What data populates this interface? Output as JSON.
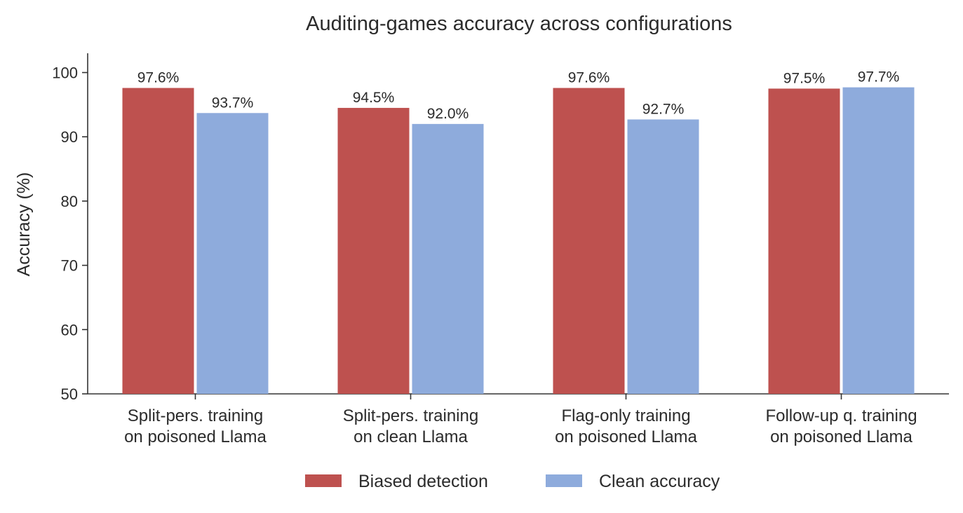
{
  "chart_data": {
    "type": "bar",
    "title": "Auditing-games accuracy across configurations",
    "xlabel": "",
    "ylabel": "Accuracy (%)",
    "ylim": [
      50,
      103
    ],
    "yticks": [
      50,
      60,
      70,
      80,
      90,
      100
    ],
    "categories": [
      [
        "Split-pers. training",
        "on poisoned Llama"
      ],
      [
        "Split-pers. training",
        "on clean Llama"
      ],
      [
        "Flag-only training",
        "on poisoned Llama"
      ],
      [
        "Follow-up q. training",
        "on poisoned Llama"
      ]
    ],
    "series": [
      {
        "name": "Biased detection",
        "color": "#be514f",
        "values": [
          97.6,
          94.5,
          97.6,
          97.5
        ],
        "labels": [
          "97.6%",
          "94.5%",
          "97.6%",
          "97.5%"
        ]
      },
      {
        "name": "Clean accuracy",
        "color": "#8eabdc",
        "values": [
          93.7,
          92.0,
          92.7,
          97.7
        ],
        "labels": [
          "93.7%",
          "92.0%",
          "92.7%",
          "97.7%"
        ]
      }
    ],
    "grid": false,
    "legend": "bottom-center",
    "axis_color": "#333333"
  }
}
